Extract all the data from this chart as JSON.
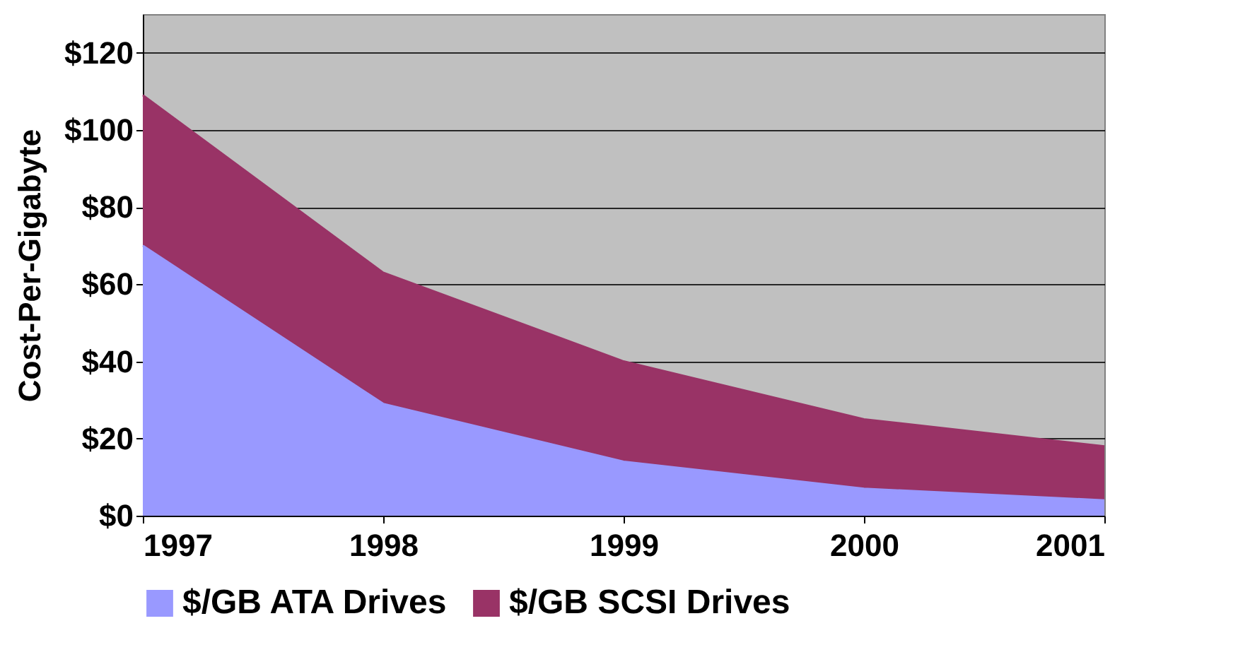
{
  "chart_data": {
    "type": "area",
    "stacked": true,
    "ylabel": "Cost-Per-Gigabyte",
    "x": [
      1997,
      1998,
      1999,
      2000,
      2001
    ],
    "xlim": [
      1997,
      2001
    ],
    "xticks": [
      1997,
      1998,
      1999,
      2000,
      2001
    ],
    "ylim": [
      0,
      130
    ],
    "yticks": [
      {
        "value": 0,
        "label": "$0"
      },
      {
        "value": 20,
        "label": "$20"
      },
      {
        "value": 40,
        "label": "$40"
      },
      {
        "value": 60,
        "label": "$60"
      },
      {
        "value": 80,
        "label": "$80"
      },
      {
        "value": 100,
        "label": "$100"
      },
      {
        "value": 120,
        "label": "$120"
      }
    ],
    "grid": "y",
    "legend": "bottom",
    "series": [
      {
        "name": "$/GB ATA Drives",
        "color": "#9999ff",
        "values": [
          70,
          29,
          14,
          7,
          4
        ]
      },
      {
        "name": "$/GB SCSI Drives",
        "color": "#993366",
        "values": [
          39,
          34,
          26,
          18,
          14
        ]
      }
    ]
  }
}
